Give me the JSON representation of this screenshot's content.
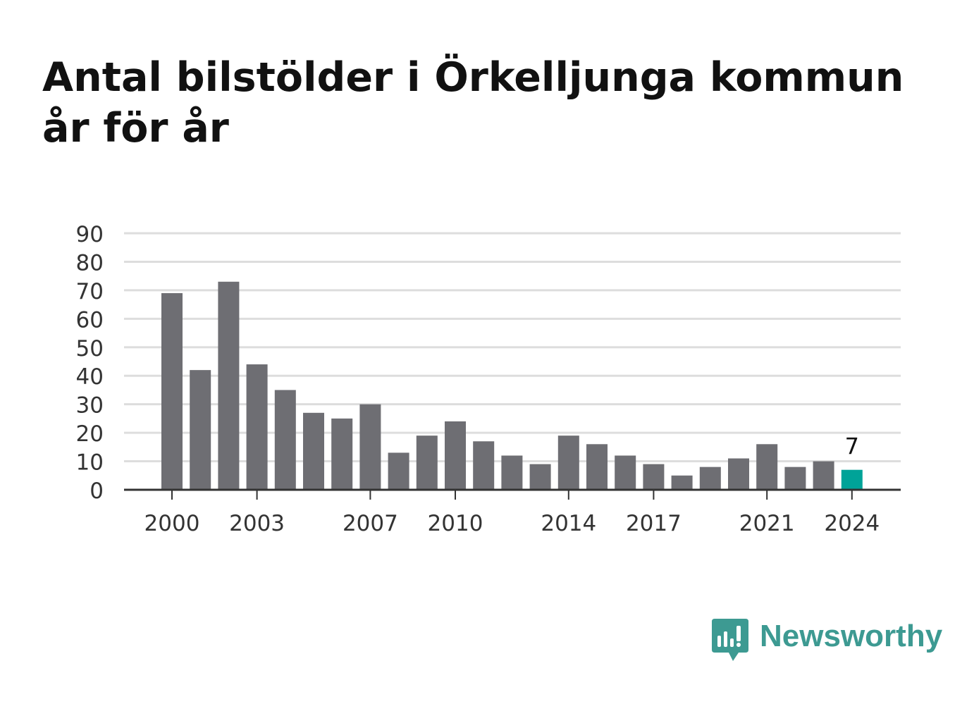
{
  "title_lines": [
    "Antal bilstölder i Örkelljunga kommun",
    "år för år"
  ],
  "brand": {
    "name": "Newsworthy",
    "icon": "newsworthy-logo-icon",
    "color": "#3d9a92"
  },
  "chart_data": {
    "type": "bar",
    "title": "Antal bilstölder i Örkelljunga kommun år för år",
    "xlabel": "",
    "ylabel": "",
    "categories": [
      "2000",
      "2001",
      "2002",
      "2003",
      "2004",
      "2005",
      "2006",
      "2007",
      "2008",
      "2009",
      "2010",
      "2011",
      "2012",
      "2013",
      "2014",
      "2015",
      "2016",
      "2017",
      "2018",
      "2019",
      "2020",
      "2021",
      "2022",
      "2023",
      "2024"
    ],
    "values": [
      69,
      42,
      73,
      44,
      35,
      27,
      25,
      30,
      13,
      19,
      24,
      17,
      12,
      9,
      19,
      16,
      12,
      9,
      5,
      8,
      11,
      16,
      8,
      10,
      7
    ],
    "ylim": [
      0,
      90
    ],
    "yticks": [
      0,
      10,
      20,
      30,
      40,
      50,
      60,
      70,
      80,
      90
    ],
    "xtick_labels": [
      "2000",
      "2003",
      "2007",
      "2010",
      "2014",
      "2017",
      "2021",
      "2024"
    ],
    "highlight": {
      "category": "2024",
      "value_label": "7"
    },
    "colors": {
      "bar": "#6e6e73",
      "highlight": "#00a398",
      "grid": "#dddddd",
      "axis": "#333333",
      "text": "#333333"
    },
    "grid": true,
    "legend": "none"
  }
}
